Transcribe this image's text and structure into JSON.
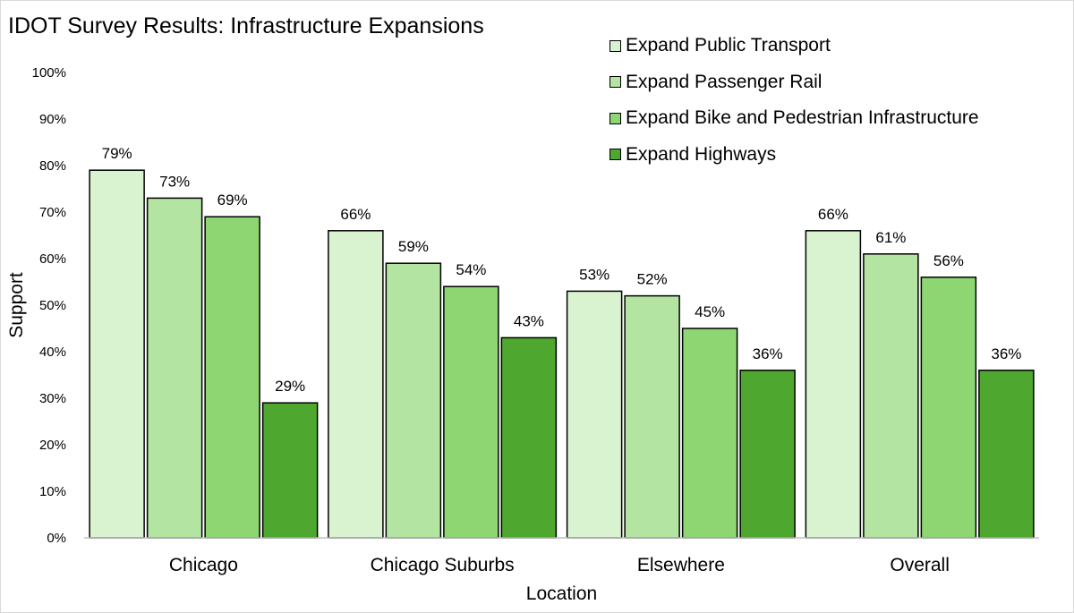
{
  "chart_data": {
    "type": "bar",
    "title": "IDOT Survey Results: Infrastructure Expansions",
    "xlabel": "Location",
    "ylabel": "Support",
    "ylim": [
      0,
      100
    ],
    "yticks": [
      "0%",
      "10%",
      "20%",
      "30%",
      "40%",
      "50%",
      "60%",
      "70%",
      "80%",
      "90%",
      "100%"
    ],
    "grid": false,
    "legend_position": "top-right",
    "categories": [
      "Chicago",
      "Chicago Suburbs",
      "Elsewhere",
      "Overall"
    ],
    "series": [
      {
        "name": "Expand Public Transport",
        "color": "#d9f2d0",
        "values": [
          79,
          66,
          53,
          66
        ],
        "labels": [
          "79%",
          "66%",
          "53%",
          "66%"
        ]
      },
      {
        "name": "Expand Passenger Rail",
        "color": "#b3e4a1",
        "values": [
          73,
          59,
          52,
          61
        ],
        "labels": [
          "73%",
          "59%",
          "52%",
          "61%"
        ]
      },
      {
        "name": "Expand Bike and Pedestrian Infrastructure",
        "color": "#8dd672",
        "values": [
          69,
          54,
          45,
          56
        ],
        "labels": [
          "69%",
          "54%",
          "45%",
          "56%"
        ]
      },
      {
        "name": "Expand Highways",
        "color": "#4ea72e",
        "values": [
          29,
          43,
          36,
          36
        ],
        "labels": [
          "29%",
          "43%",
          "36%",
          "36%"
        ]
      }
    ]
  }
}
